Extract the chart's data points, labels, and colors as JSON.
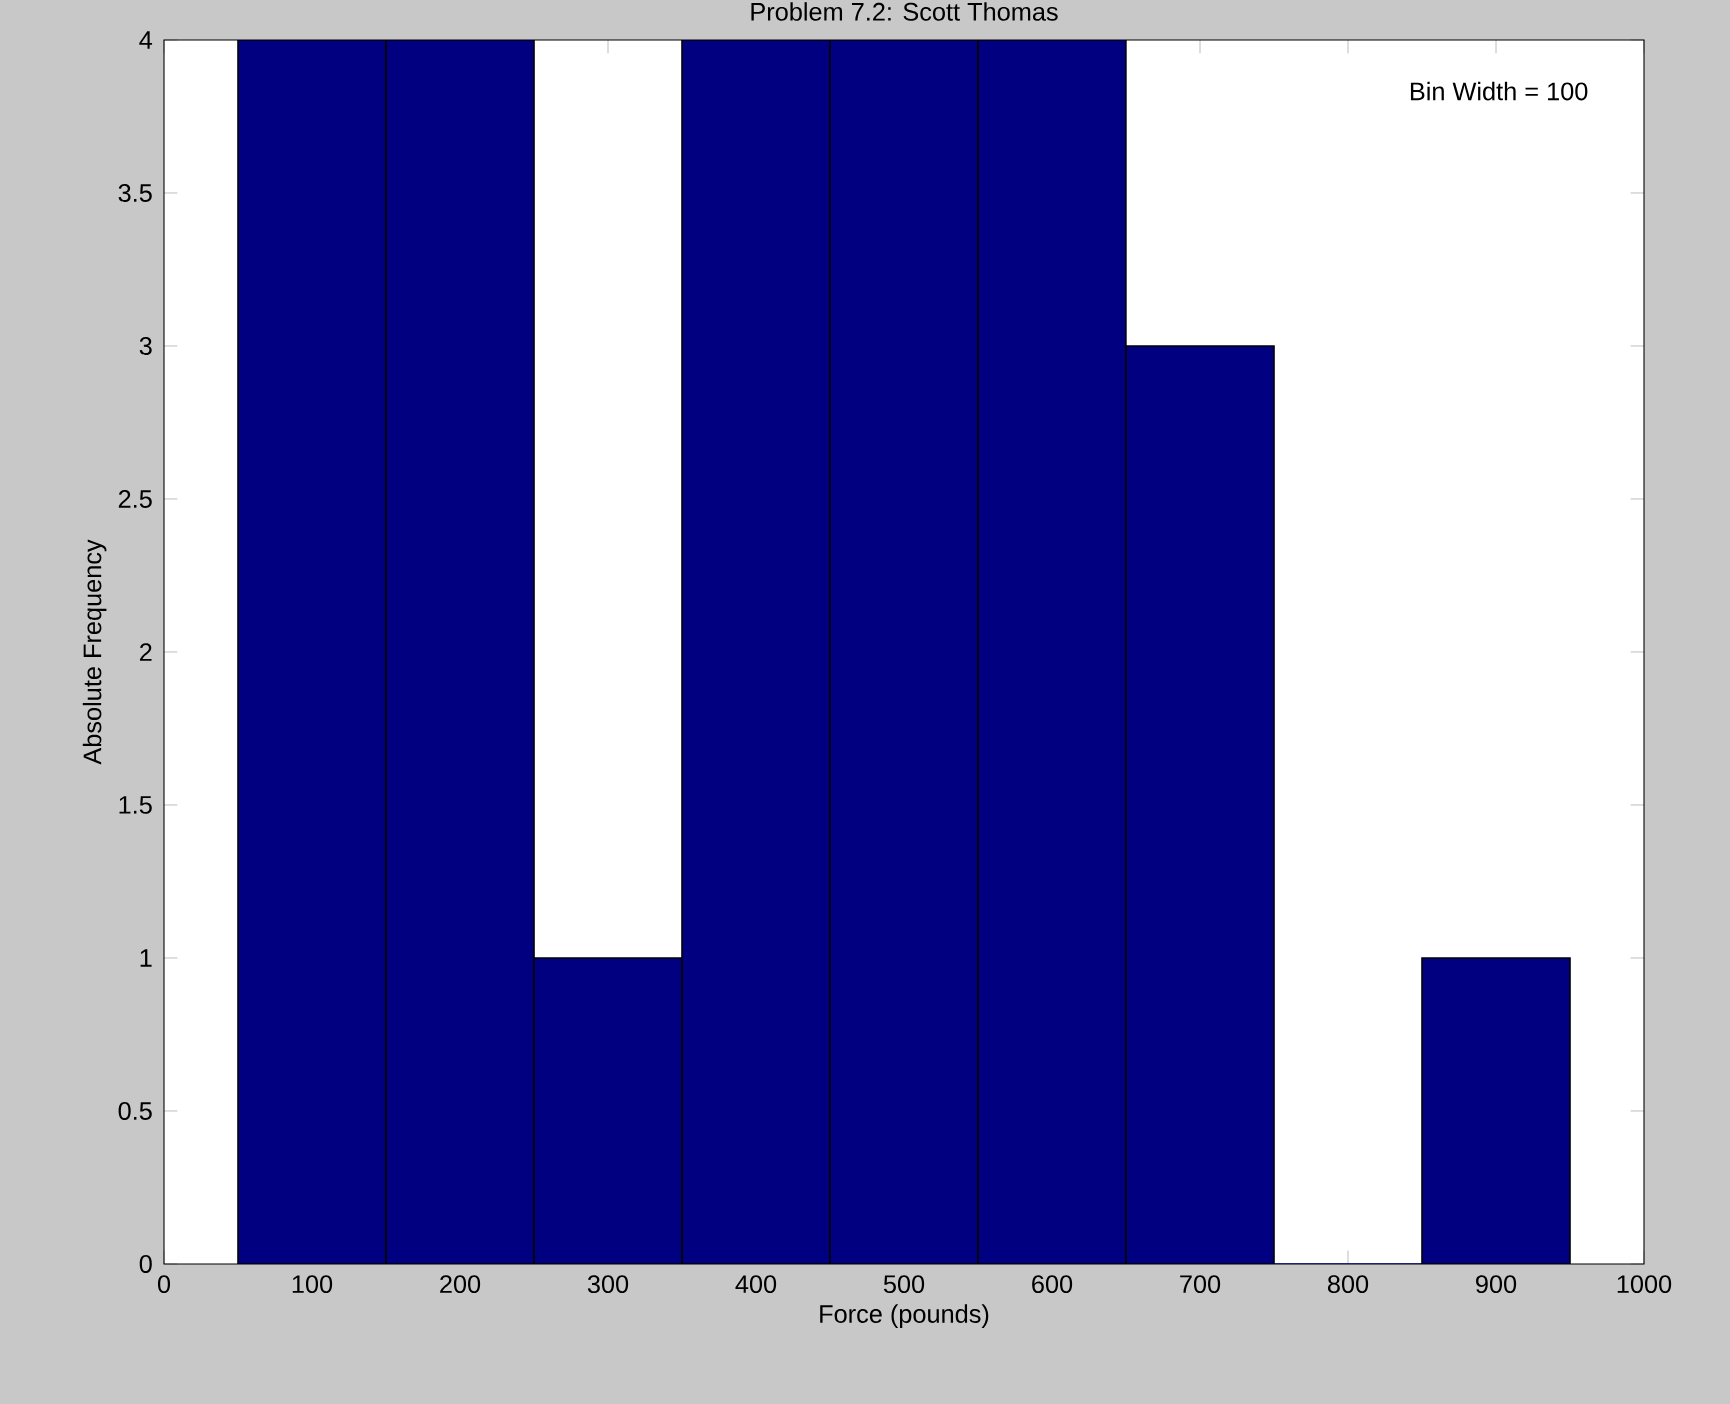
{
  "chart_data": {
    "type": "histogram",
    "title": "Problem 7.2: Scott Thomas",
    "xlabel": "Force (pounds)",
    "ylabel": "Absolute Frequency",
    "bins": [
      50,
      150,
      250,
      350,
      450,
      550,
      650,
      750,
      850,
      950
    ],
    "values": [
      4,
      4,
      1,
      4,
      4,
      4,
      3,
      0,
      1
    ],
    "color": "#000080",
    "xlim": [
      0,
      1000
    ],
    "ylim": [
      0,
      4
    ],
    "xticks": [
      0,
      100,
      200,
      300,
      400,
      500,
      600,
      700,
      800,
      900,
      1000
    ],
    "yticks": [
      0,
      0.5,
      1,
      1.5,
      2,
      2.5,
      3,
      3.5,
      4
    ],
    "annotations": [
      "Bin Width = 100"
    ],
    "grid": false
  }
}
